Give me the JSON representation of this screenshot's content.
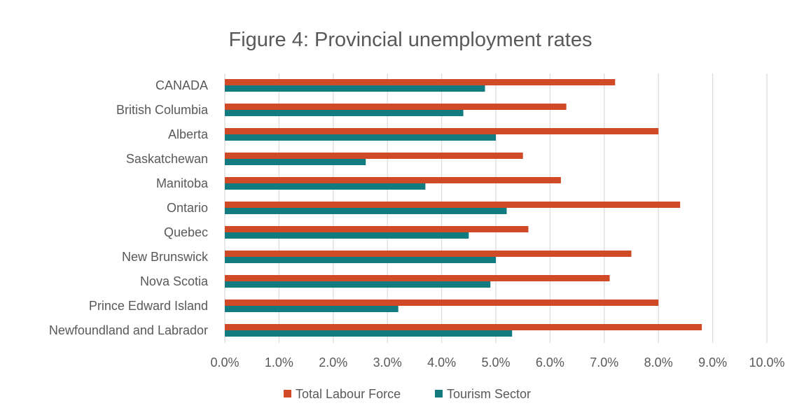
{
  "chart_data": {
    "type": "bar",
    "orientation": "horizontal",
    "title": "Figure 4: Provincial unemployment rates",
    "categories": [
      "CANADA",
      "British Columbia",
      "Alberta",
      "Saskatchewan",
      "Manitoba",
      "Ontario",
      "Quebec",
      "New Brunswick",
      "Nova Scotia",
      "Prince Edward Island",
      "Newfoundland and Labrador"
    ],
    "series": [
      {
        "name": "Total Labour Force",
        "color": "#d04a27",
        "values": [
          7.2,
          6.3,
          8.0,
          5.5,
          6.2,
          8.4,
          5.6,
          7.5,
          7.1,
          8.0,
          8.8
        ]
      },
      {
        "name": "Tourism Sector",
        "color": "#127b80",
        "values": [
          4.8,
          4.4,
          5.0,
          2.6,
          3.7,
          5.2,
          4.5,
          5.0,
          4.9,
          3.2,
          5.3
        ]
      }
    ],
    "xlim": [
      0,
      10
    ],
    "x_ticks": [
      0,
      1,
      2,
      3,
      4,
      5,
      6,
      7,
      8,
      9,
      10
    ],
    "x_tick_labels": [
      "0.0%",
      "1.0%",
      "2.0%",
      "3.0%",
      "4.0%",
      "5.0%",
      "6.0%",
      "7.0%",
      "8.0%",
      "9.0%",
      "10.0%"
    ],
    "unit": "%",
    "grid": "vertical",
    "legend": "bottom-center"
  }
}
